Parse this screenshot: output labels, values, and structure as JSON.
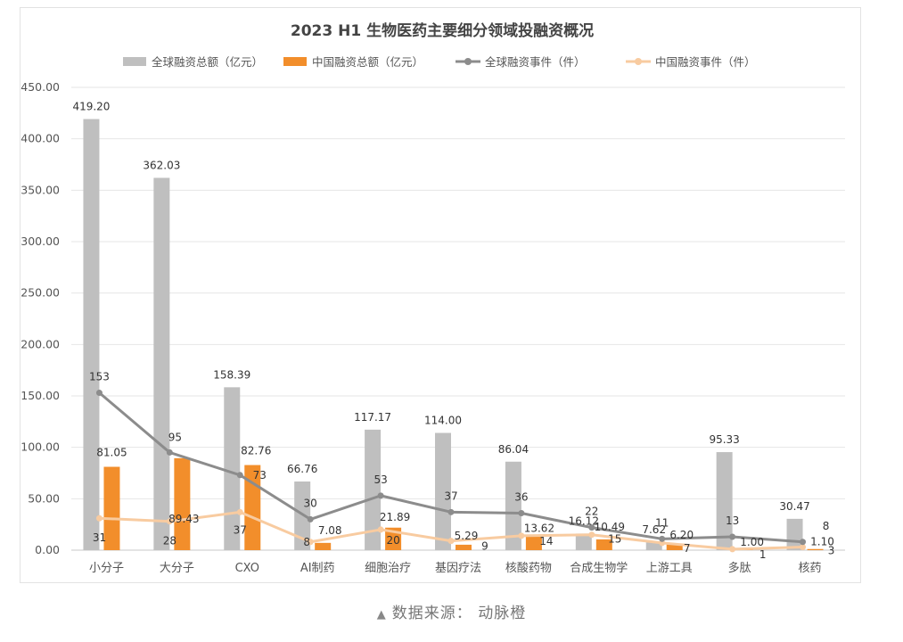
{
  "chart_data": {
    "type": "bar",
    "title": "2023 H1 生物医药主要细分领域投融资概况",
    "categories": [
      "小分子",
      "大分子",
      "CXO",
      "AI制药",
      "细胞治疗",
      "基因疗法",
      "核酸药物",
      "合成生物学",
      "上游工具",
      "多肽",
      "核药"
    ],
    "ylim": [
      0,
      450
    ],
    "yticks": [
      "0.00",
      "50.00",
      "100.00",
      "150.00",
      "200.00",
      "250.00",
      "300.00",
      "350.00",
      "400.00",
      "450.00"
    ],
    "grid": true,
    "legend_position": "top",
    "series": [
      {
        "name": "全球融资总额（亿元）",
        "kind": "bar",
        "color": "#bfbfbf",
        "values": [
          419.2,
          362.03,
          158.39,
          66.76,
          117.17,
          114.0,
          86.04,
          16.12,
          7.62,
          95.33,
          30.47
        ],
        "labels": [
          "419.20",
          "362.03",
          "158.39",
          "66.76",
          "117.17",
          "114.00",
          "86.04",
          "16.12",
          "7.62",
          "95.33",
          "30.47"
        ]
      },
      {
        "name": "中国融资总额（亿元）",
        "kind": "bar",
        "color": "#f28e2b",
        "values": [
          81.05,
          89.43,
          82.76,
          7.08,
          21.89,
          5.29,
          13.62,
          10.49,
          6.2,
          1.0,
          1.1
        ],
        "labels": [
          "81.05",
          "89.43",
          "82.76",
          "7.08",
          "21.89",
          "5.29",
          "13.62",
          "10.49",
          "6.20",
          "1.00",
          "1.10"
        ]
      },
      {
        "name": "全球融资事件（件）",
        "kind": "line",
        "color": "#8c8c8c",
        "values": [
          153,
          95,
          73,
          30,
          53,
          37,
          36,
          22,
          11,
          13,
          8
        ],
        "labels": [
          "153",
          "95",
          "73",
          "30",
          "53",
          "37",
          "36",
          "22",
          "11",
          "13",
          "8"
        ]
      },
      {
        "name": "中国融资事件（件）",
        "kind": "line",
        "color": "#f8cba0",
        "values": [
          31,
          28,
          37,
          8,
          20,
          9,
          14,
          15,
          7,
          1,
          3
        ],
        "labels": [
          "31",
          "28",
          "37",
          "8",
          "20",
          "9",
          "14",
          "15",
          "7",
          "1",
          "3"
        ]
      }
    ]
  },
  "source": {
    "marker": "▲",
    "text": "数据来源：  动脉橙"
  }
}
